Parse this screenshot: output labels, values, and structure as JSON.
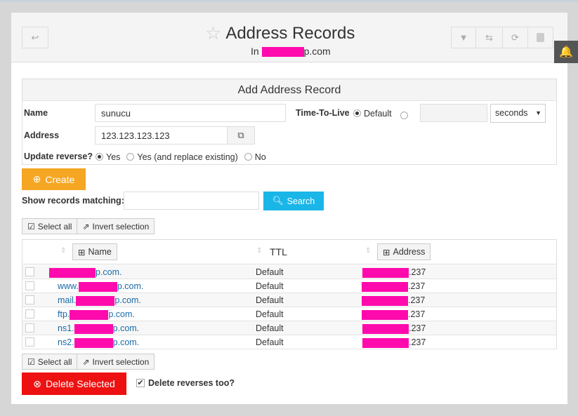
{
  "header": {
    "title": "Address Records",
    "subtitle_prefix": "In",
    "subtitle_suffix": "p.com"
  },
  "form": {
    "title": "Add Address Record",
    "name_label": "Name",
    "name_value": "sunucu",
    "address_label": "Address",
    "address_value": "123.123.123.123",
    "ttl_label": "Time-To-Live",
    "ttl_default": "Default",
    "ttl_unit": "seconds",
    "reverse_label": "Update reverse?",
    "reverse_options": [
      "Yes",
      "Yes (and replace existing)",
      "No"
    ],
    "create_label": "Create"
  },
  "search": {
    "label": "Show records matching:",
    "value": "",
    "button": "Search"
  },
  "selection": {
    "select_all": "Select all",
    "invert": "Invert selection"
  },
  "table": {
    "columns": [
      "Name",
      "TTL",
      "Address"
    ],
    "rows": [
      {
        "name_prefix": "",
        "name_suffix": "p.com.",
        "ttl": "Default",
        "address_suffix": ".237"
      },
      {
        "name_prefix": "www.",
        "name_suffix": "p.com.",
        "ttl": "Default",
        "address_suffix": ".237"
      },
      {
        "name_prefix": "mail.",
        "name_suffix": "p.com.",
        "ttl": "Default",
        "address_suffix": ".237"
      },
      {
        "name_prefix": "ftp.",
        "name_suffix": "p.com.",
        "ttl": "Default",
        "address_suffix": ".237"
      },
      {
        "name_prefix": "ns1.",
        "name_suffix": "p.com.",
        "ttl": "Default",
        "address_suffix": ".237"
      },
      {
        "name_prefix": "ns2.",
        "name_suffix": "p.com.",
        "ttl": "Default",
        "address_suffix": ".237"
      }
    ]
  },
  "footer": {
    "delete_label": "Delete Selected",
    "delete_reverses_label": "Delete reverses too?",
    "delete_reverses_checked": true
  },
  "colors": {
    "create": "#f5a623",
    "search": "#1ab6e8",
    "delete": "#ee1111",
    "redaction": "#ff0aad",
    "link": "#1a6aa8"
  }
}
